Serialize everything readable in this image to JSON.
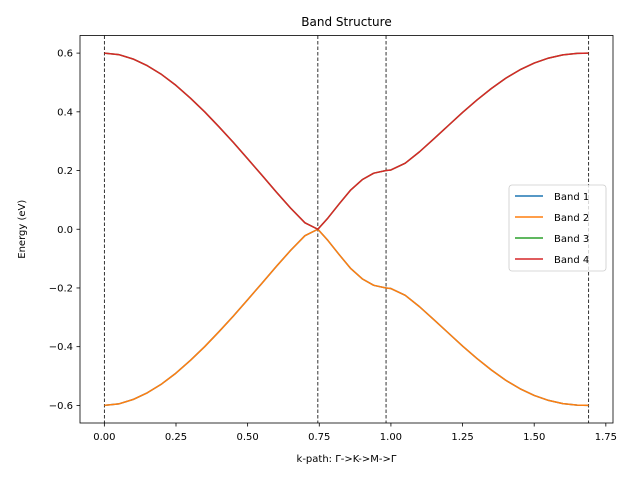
{
  "chart_data": {
    "type": "line",
    "title": "Band Structure",
    "xlabel": "k-path: Γ->K->M->Γ",
    "ylabel": "Energy (eV)",
    "xlim": [
      -0.085,
      1.775
    ],
    "ylim": [
      -0.66,
      0.66
    ],
    "xticks": [
      0.0,
      0.25,
      0.5,
      0.75,
      1.0,
      1.25,
      1.5,
      1.75
    ],
    "xtick_labels": [
      "0.00",
      "0.25",
      "0.50",
      "0.75",
      "1.00",
      "1.25",
      "1.50",
      "1.75"
    ],
    "yticks": [
      -0.6,
      -0.4,
      -0.2,
      0.0,
      0.2,
      0.4,
      0.6
    ],
    "ytick_labels": [
      "−0.6",
      "−0.4",
      "−0.2",
      "0.0",
      "0.2",
      "0.4",
      "0.6"
    ],
    "vlines": [
      0.0,
      0.745,
      0.983,
      1.69
    ],
    "grid": false,
    "legend": "center-right",
    "series": [
      {
        "name": "Band 1",
        "color": "#1f77b4",
        "x": [
          0.0,
          0.05,
          0.1,
          0.15,
          0.2,
          0.25,
          0.3,
          0.35,
          0.4,
          0.45,
          0.5,
          0.55,
          0.6,
          0.65,
          0.7,
          0.745,
          0.78,
          0.82,
          0.86,
          0.9,
          0.94,
          0.983,
          1.0,
          1.05,
          1.1,
          1.15,
          1.2,
          1.25,
          1.3,
          1.35,
          1.4,
          1.45,
          1.5,
          1.55,
          1.6,
          1.65,
          1.69
        ],
        "y": [
          -0.6,
          -0.595,
          -0.58,
          -0.557,
          -0.527,
          -0.49,
          -0.447,
          -0.4,
          -0.349,
          -0.296,
          -0.24,
          -0.184,
          -0.127,
          -0.072,
          -0.022,
          0.0,
          -0.038,
          -0.087,
          -0.134,
          -0.169,
          -0.191,
          -0.2,
          -0.202,
          -0.225,
          -0.264,
          -0.308,
          -0.353,
          -0.398,
          -0.44,
          -0.479,
          -0.514,
          -0.543,
          -0.566,
          -0.583,
          -0.594,
          -0.599,
          -0.6
        ]
      },
      {
        "name": "Band 2",
        "color": "#ff7f0e",
        "x": [
          0.0,
          0.05,
          0.1,
          0.15,
          0.2,
          0.25,
          0.3,
          0.35,
          0.4,
          0.45,
          0.5,
          0.55,
          0.6,
          0.65,
          0.7,
          0.745,
          0.78,
          0.82,
          0.86,
          0.9,
          0.94,
          0.983,
          1.0,
          1.05,
          1.1,
          1.15,
          1.2,
          1.25,
          1.3,
          1.35,
          1.4,
          1.45,
          1.5,
          1.55,
          1.6,
          1.65,
          1.69
        ],
        "y": [
          -0.6,
          -0.595,
          -0.58,
          -0.557,
          -0.527,
          -0.49,
          -0.447,
          -0.4,
          -0.349,
          -0.296,
          -0.24,
          -0.184,
          -0.127,
          -0.072,
          -0.022,
          0.0,
          -0.038,
          -0.087,
          -0.134,
          -0.169,
          -0.191,
          -0.2,
          -0.202,
          -0.225,
          -0.264,
          -0.308,
          -0.353,
          -0.398,
          -0.44,
          -0.479,
          -0.514,
          -0.543,
          -0.566,
          -0.583,
          -0.594,
          -0.599,
          -0.6
        ]
      },
      {
        "name": "Band 3",
        "color": "#2ca02c",
        "x": [
          0.0,
          0.05,
          0.1,
          0.15,
          0.2,
          0.25,
          0.3,
          0.35,
          0.4,
          0.45,
          0.5,
          0.55,
          0.6,
          0.65,
          0.7,
          0.745,
          0.78,
          0.82,
          0.86,
          0.9,
          0.94,
          0.983,
          1.0,
          1.05,
          1.1,
          1.15,
          1.2,
          1.25,
          1.3,
          1.35,
          1.4,
          1.45,
          1.5,
          1.55,
          1.6,
          1.65,
          1.69
        ],
        "y": [
          0.6,
          0.595,
          0.58,
          0.557,
          0.527,
          0.49,
          0.447,
          0.4,
          0.349,
          0.296,
          0.24,
          0.184,
          0.127,
          0.072,
          0.022,
          0.0,
          0.038,
          0.087,
          0.134,
          0.169,
          0.191,
          0.2,
          0.202,
          0.225,
          0.264,
          0.308,
          0.353,
          0.398,
          0.44,
          0.479,
          0.514,
          0.543,
          0.566,
          0.583,
          0.594,
          0.599,
          0.6
        ]
      },
      {
        "name": "Band 4",
        "color": "#d62728",
        "x": [
          0.0,
          0.05,
          0.1,
          0.15,
          0.2,
          0.25,
          0.3,
          0.35,
          0.4,
          0.45,
          0.5,
          0.55,
          0.6,
          0.65,
          0.7,
          0.745,
          0.78,
          0.82,
          0.86,
          0.9,
          0.94,
          0.983,
          1.0,
          1.05,
          1.1,
          1.15,
          1.2,
          1.25,
          1.3,
          1.35,
          1.4,
          1.45,
          1.5,
          1.55,
          1.6,
          1.65,
          1.69
        ],
        "y": [
          0.6,
          0.595,
          0.58,
          0.557,
          0.527,
          0.49,
          0.447,
          0.4,
          0.349,
          0.296,
          0.24,
          0.184,
          0.127,
          0.072,
          0.022,
          0.0,
          0.038,
          0.087,
          0.134,
          0.169,
          0.191,
          0.2,
          0.202,
          0.225,
          0.264,
          0.308,
          0.353,
          0.398,
          0.44,
          0.479,
          0.514,
          0.543,
          0.566,
          0.583,
          0.594,
          0.599,
          0.6
        ]
      }
    ]
  }
}
